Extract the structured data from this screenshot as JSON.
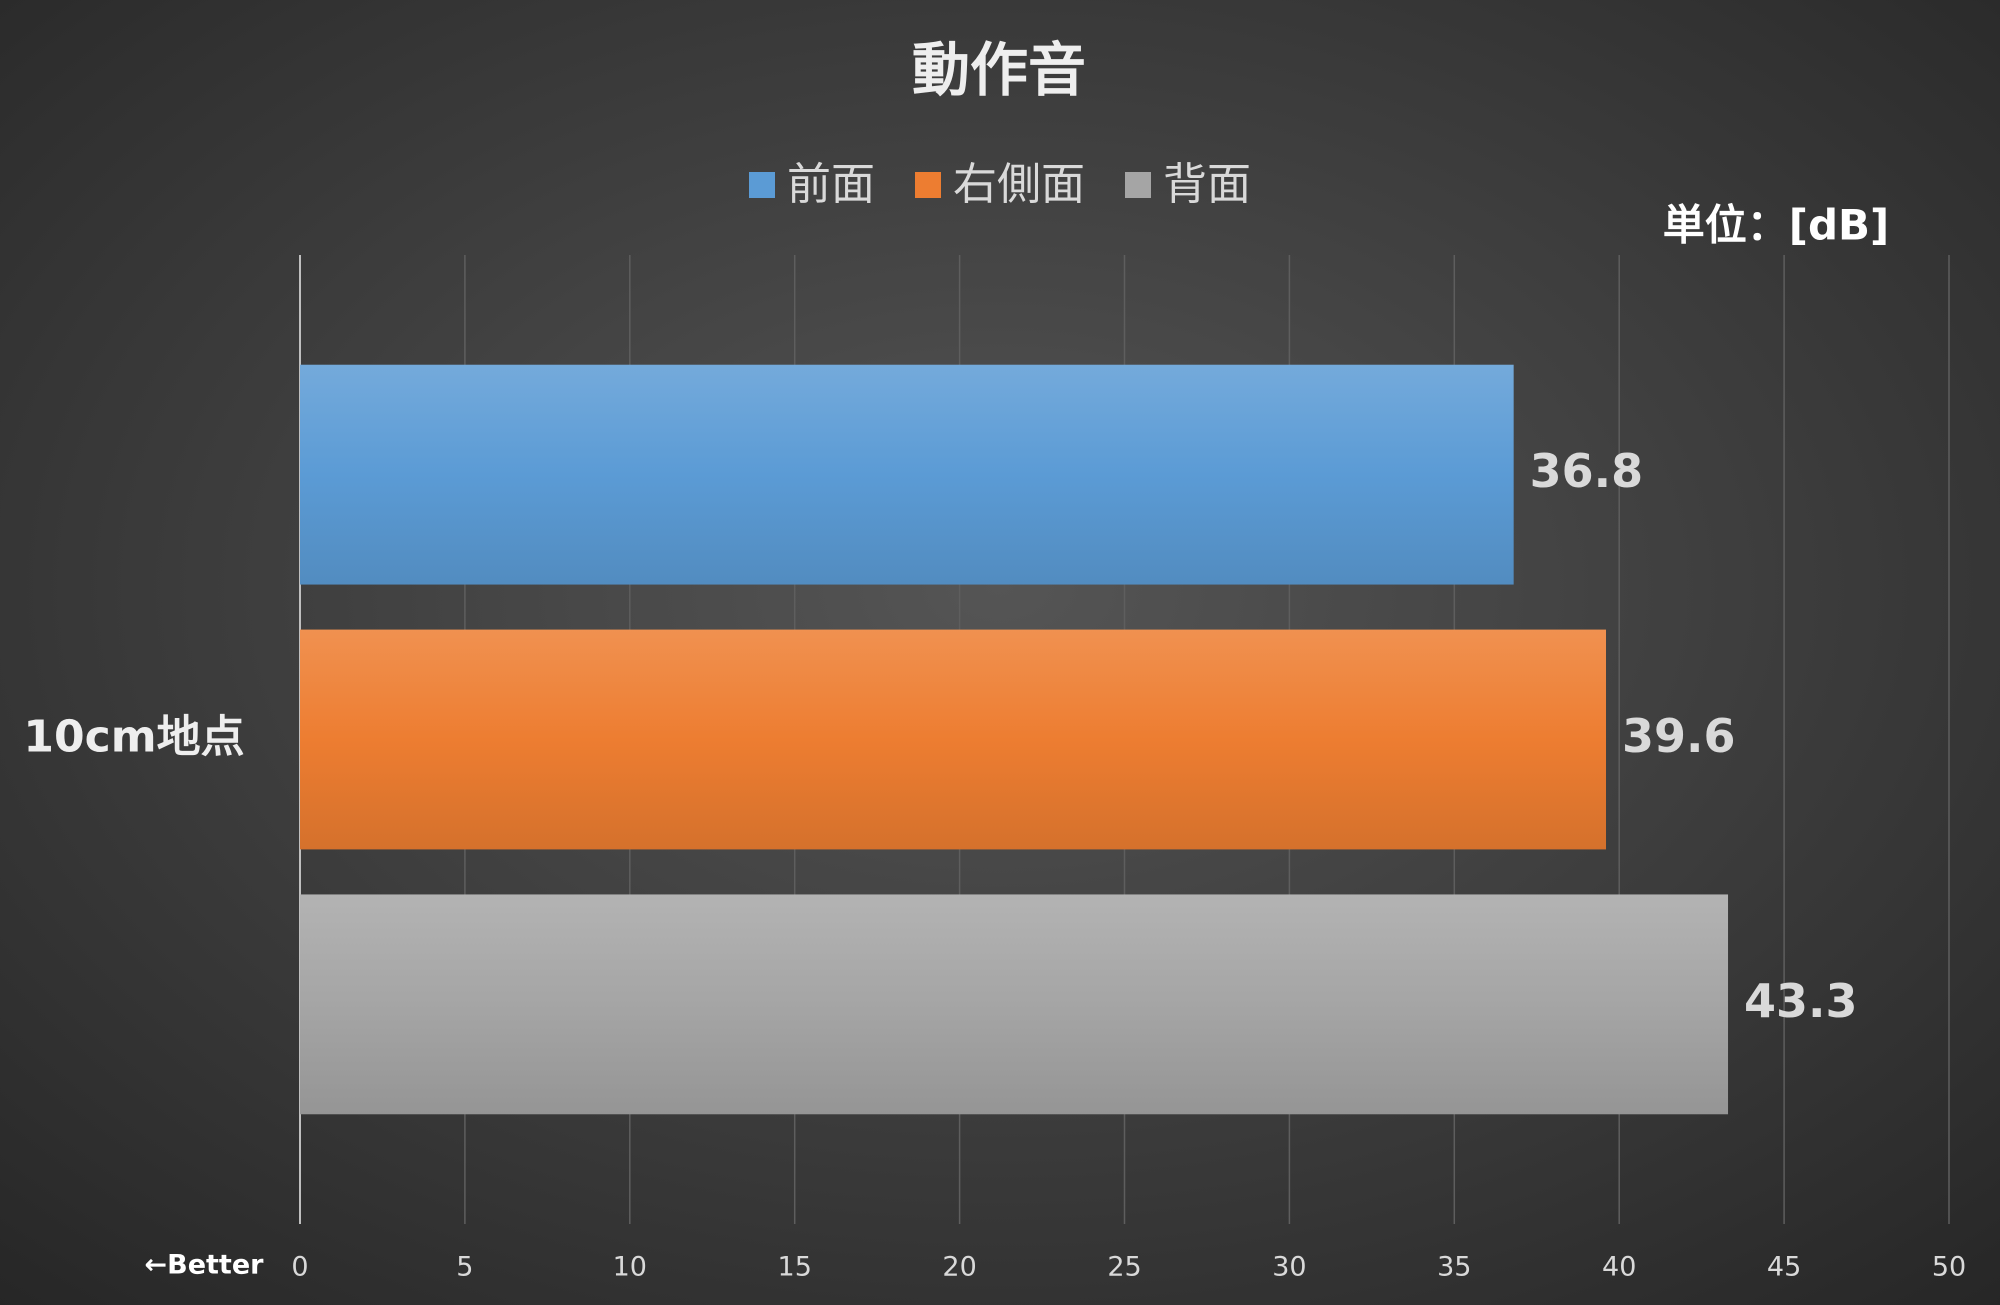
{
  "chart_data": {
    "type": "bar",
    "orientation": "horizontal",
    "title": "動作音",
    "annotations": [
      "単位：[dB]",
      "←Better"
    ],
    "categories": [
      "10cm地点"
    ],
    "series": [
      {
        "name": "前面",
        "color": "#5b9bd5",
        "values": [
          36.8
        ]
      },
      {
        "name": "右側面",
        "color": "#ed7d31",
        "values": [
          39.6
        ]
      },
      {
        "name": "背面",
        "color": "#a5a5a5",
        "values": [
          43.3
        ]
      }
    ],
    "xlim": [
      0,
      50
    ],
    "xticks": [
      0,
      5,
      10,
      15,
      20,
      25,
      30,
      35,
      40,
      45,
      50
    ],
    "grid": true
  }
}
